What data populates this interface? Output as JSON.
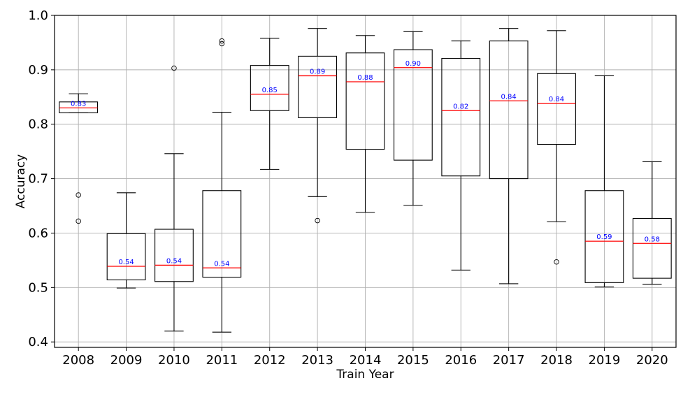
{
  "chart_data": {
    "type": "box",
    "title": "",
    "xlabel": "Train Year",
    "ylabel": "Accuracy",
    "ylim": [
      0.39,
      1.0
    ],
    "yticks": [
      "0.4",
      "0.5",
      "0.6",
      "0.7",
      "0.8",
      "0.9",
      "1.0"
    ],
    "grid": true,
    "colors": {
      "box": "#000000",
      "median": "#ff0000",
      "median_label": "#0000ff",
      "grid": "#b0b0b0"
    },
    "categories": [
      "2008",
      "2009",
      "2010",
      "2011",
      "2012",
      "2013",
      "2014",
      "2015",
      "2016",
      "2017",
      "2018",
      "2019",
      "2020"
    ],
    "boxes": [
      {
        "whisker_low": 0.821,
        "q1": 0.821,
        "median": 0.83,
        "q3": 0.841,
        "whisker_high": 0.856,
        "outliers": [
          0.67,
          0.622
        ],
        "median_label": "0.83"
      },
      {
        "whisker_low": 0.499,
        "q1": 0.514,
        "median": 0.539,
        "q3": 0.599,
        "whisker_high": 0.674,
        "outliers": [],
        "median_label": "0.54"
      },
      {
        "whisker_low": 0.42,
        "q1": 0.511,
        "median": 0.541,
        "q3": 0.607,
        "whisker_high": 0.746,
        "outliers": [
          0.903
        ],
        "median_label": "0.54"
      },
      {
        "whisker_low": 0.418,
        "q1": 0.519,
        "median": 0.536,
        "q3": 0.678,
        "whisker_high": 0.822,
        "outliers": [
          0.948,
          0.953
        ],
        "median_label": "0.54"
      },
      {
        "whisker_low": 0.717,
        "q1": 0.825,
        "median": 0.855,
        "q3": 0.908,
        "whisker_high": 0.958,
        "outliers": [],
        "median_label": "0.85"
      },
      {
        "whisker_low": 0.667,
        "q1": 0.812,
        "median": 0.889,
        "q3": 0.925,
        "whisker_high": 0.976,
        "outliers": [
          0.623
        ],
        "median_label": "0.89"
      },
      {
        "whisker_low": 0.638,
        "q1": 0.754,
        "median": 0.878,
        "q3": 0.931,
        "whisker_high": 0.963,
        "outliers": [],
        "median_label": "0.88"
      },
      {
        "whisker_low": 0.651,
        "q1": 0.734,
        "median": 0.904,
        "q3": 0.937,
        "whisker_high": 0.97,
        "outliers": [],
        "median_label": "0.90"
      },
      {
        "whisker_low": 0.532,
        "q1": 0.705,
        "median": 0.825,
        "q3": 0.921,
        "whisker_high": 0.953,
        "outliers": [],
        "median_label": "0.82"
      },
      {
        "whisker_low": 0.507,
        "q1": 0.7,
        "median": 0.843,
        "q3": 0.953,
        "whisker_high": 0.976,
        "outliers": [],
        "median_label": "0.84"
      },
      {
        "whisker_low": 0.621,
        "q1": 0.763,
        "median": 0.838,
        "q3": 0.893,
        "whisker_high": 0.972,
        "outliers": [
          0.547
        ],
        "median_label": "0.84"
      },
      {
        "whisker_low": 0.501,
        "q1": 0.509,
        "median": 0.585,
        "q3": 0.678,
        "whisker_high": 0.889,
        "outliers": [],
        "median_label": "0.59"
      },
      {
        "whisker_low": 0.506,
        "q1": 0.517,
        "median": 0.581,
        "q3": 0.627,
        "whisker_high": 0.731,
        "outliers": [],
        "median_label": "0.58"
      }
    ]
  }
}
